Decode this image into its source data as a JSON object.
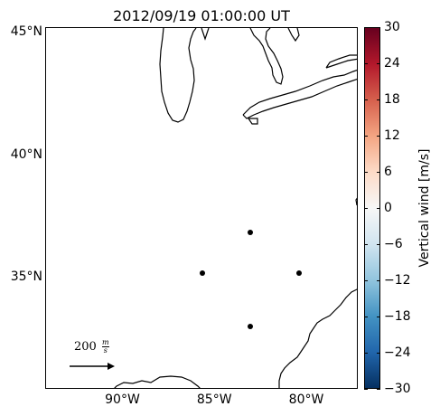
{
  "title": "2012/09/19 01:00:00 UT",
  "lat_ticks": [
    {
      "label": "45°N",
      "value": 45
    },
    {
      "label": "40°N",
      "value": 40
    },
    {
      "label": "35°N",
      "value": 35
    }
  ],
  "lon_ticks": [
    {
      "label": "90°W",
      "value": -90
    },
    {
      "label": "85°W",
      "value": -85
    },
    {
      "label": "80°W",
      "value": -80
    }
  ],
  "colorbar": {
    "label": "Vertical wind [m/s]",
    "min": -30,
    "max": 30,
    "ticks": [
      "30",
      "24",
      "18",
      "12",
      "6",
      "0",
      "−6",
      "−12",
      "−18",
      "−24",
      "−30"
    ],
    "colors": [
      "#67001f",
      "#b2182b",
      "#d6604d",
      "#f4a582",
      "#fddbc7",
      "#f7f7f7",
      "#d1e5f0",
      "#92c5de",
      "#4393c3",
      "#2166ac",
      "#053061"
    ]
  },
  "scale_arrow": {
    "value": "200",
    "unit_num": "m",
    "unit_den": "s"
  },
  "stations": [
    {
      "lon": -83.0,
      "lat": 37.0
    },
    {
      "lon": -85.6,
      "lat": 35.3
    },
    {
      "lon": -80.4,
      "lat": 35.3
    },
    {
      "lon": -83.0,
      "lat": 33.1
    }
  ],
  "map_extent": {
    "lon_min": -94.2,
    "lon_max": -77.2,
    "lat_min": 30.4,
    "lat_max": 45.2
  }
}
